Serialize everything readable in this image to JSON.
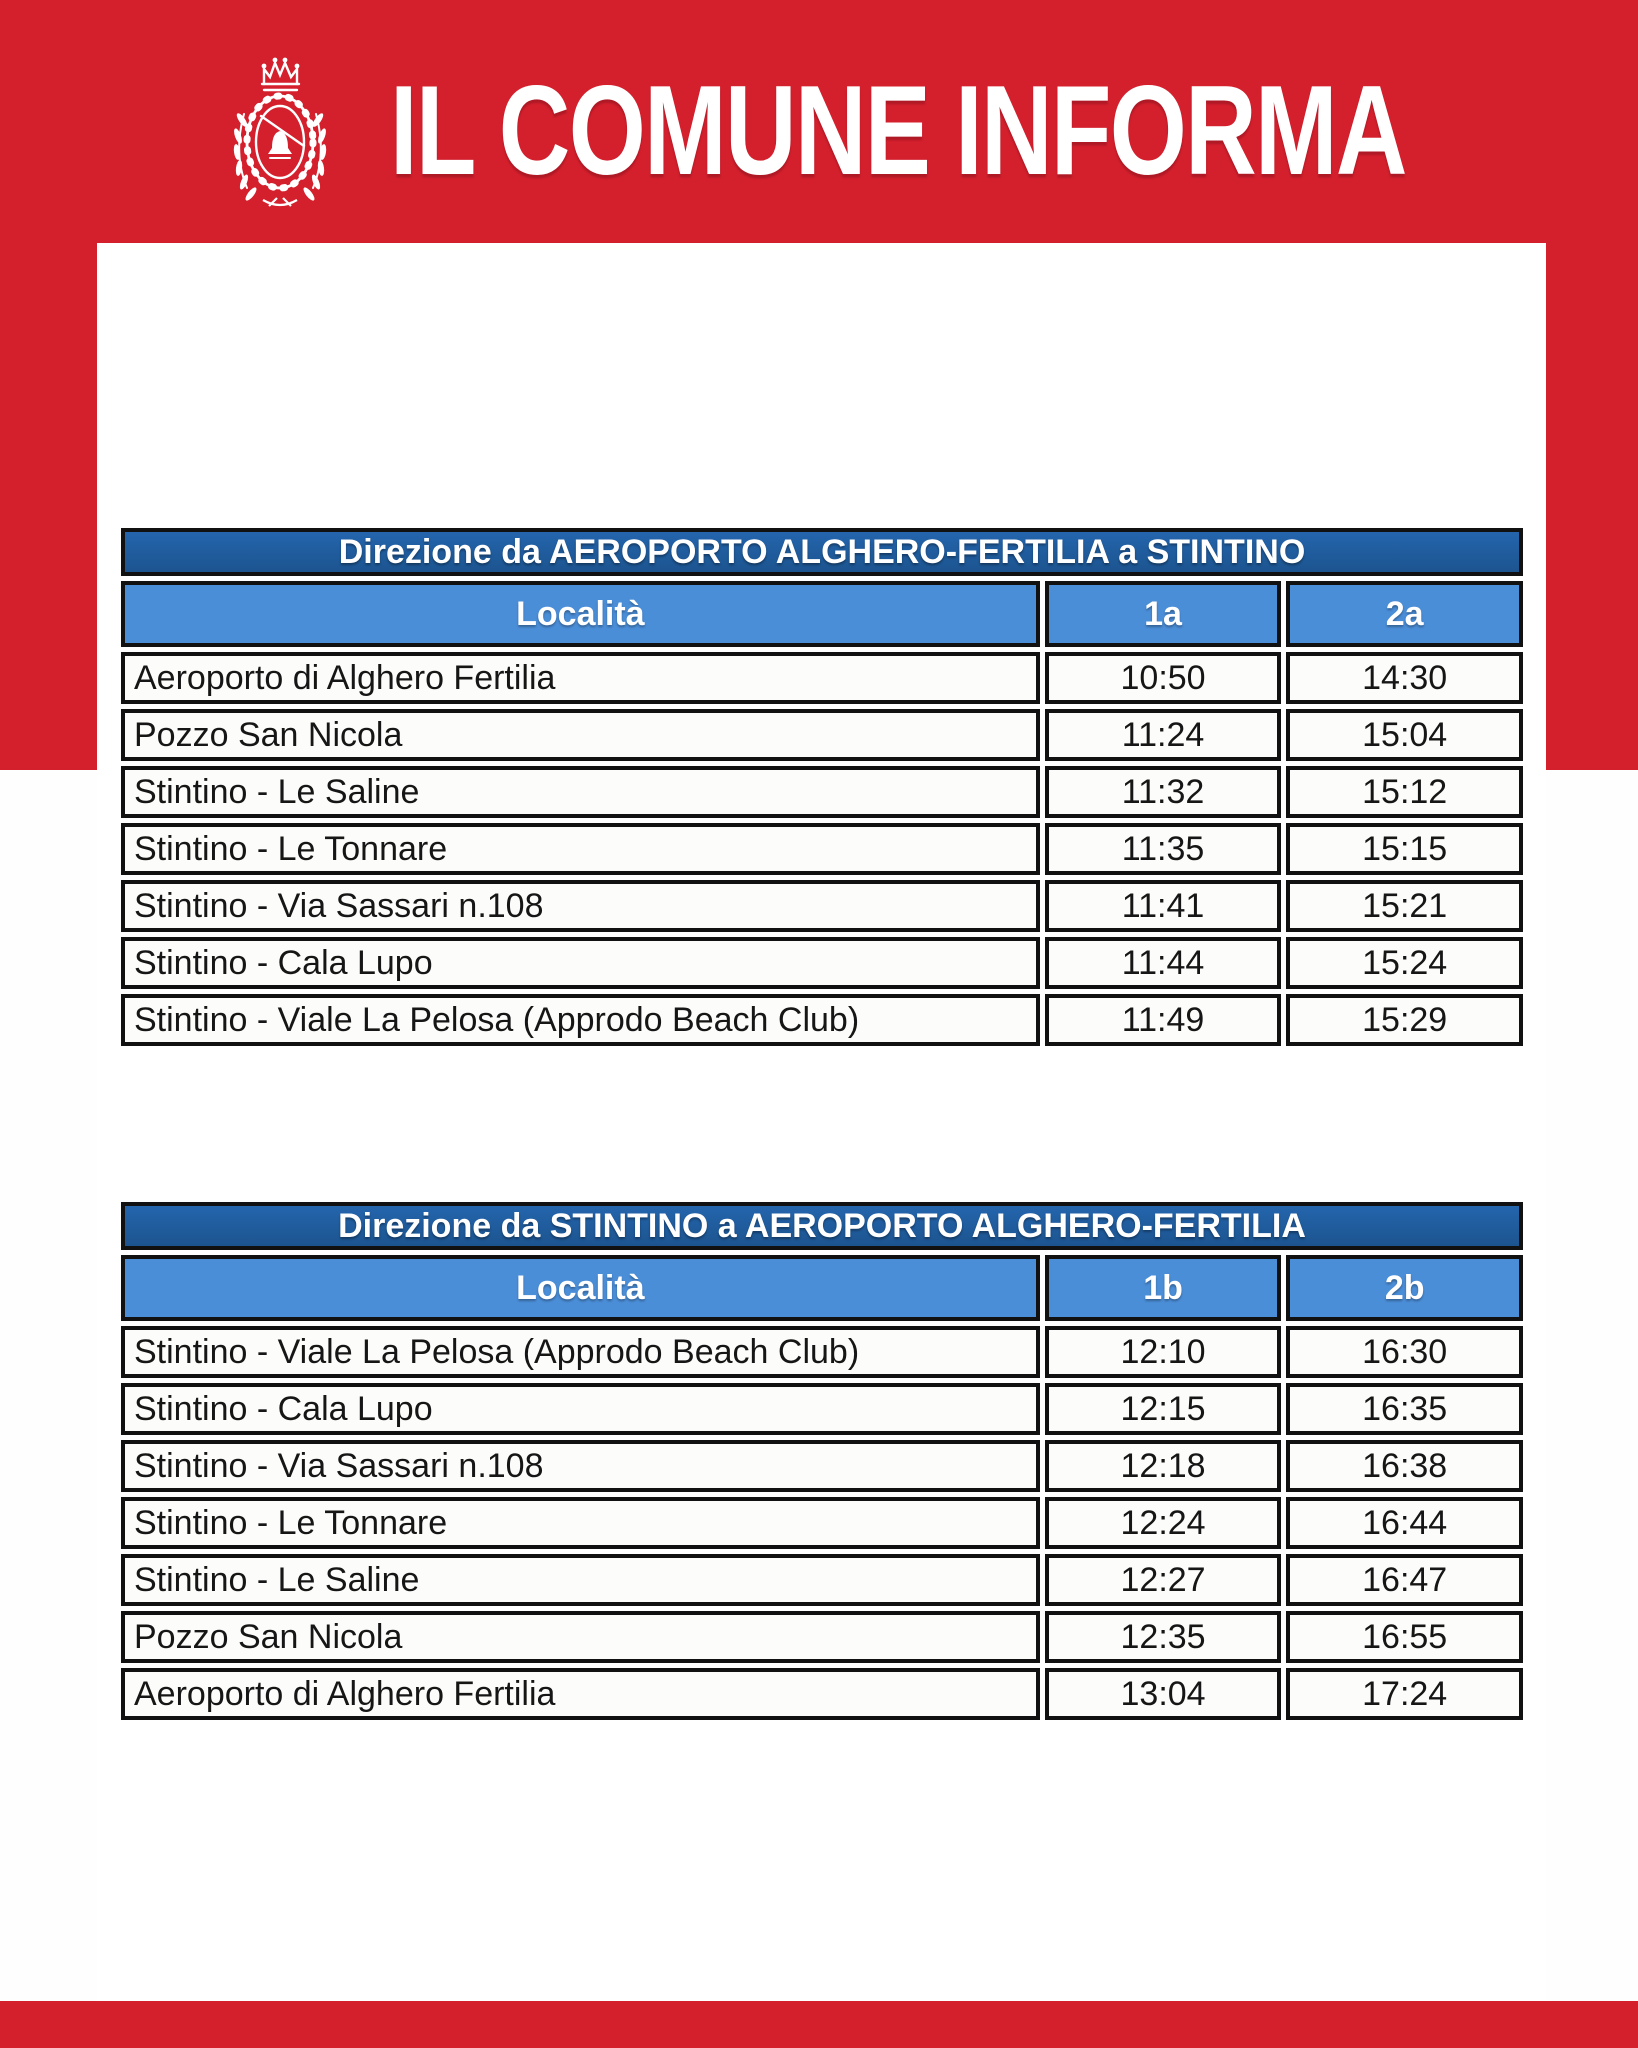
{
  "header": {
    "title": "IL COMUNE INFORMA",
    "logo": "comune-crest-icon"
  },
  "colors": {
    "brand_red": "#d41f2d",
    "table_title_blue": "#1f5da5",
    "table_header_blue": "#4b8ed8",
    "border_black": "#111111",
    "cell_background": "#fcfcfa",
    "text_white": "#ffffff"
  },
  "tables": [
    {
      "title": "Direzione da AEROPORTO ALGHERO-FERTILIA a STINTINO",
      "columns": [
        "Località",
        "1a",
        "2a"
      ],
      "rows": [
        [
          "Aeroporto di Alghero Fertilia",
          "10:50",
          "14:30"
        ],
        [
          "Pozzo San Nicola",
          "11:24",
          "15:04"
        ],
        [
          "Stintino - Le Saline",
          "11:32",
          "15:12"
        ],
        [
          "Stintino - Le Tonnare",
          "11:35",
          "15:15"
        ],
        [
          "Stintino - Via Sassari n.108",
          "11:41",
          "15:21"
        ],
        [
          "Stintino - Cala Lupo",
          "11:44",
          "15:24"
        ],
        [
          "Stintino - Viale La Pelosa (Approdo Beach Club)",
          "11:49",
          "15:29"
        ]
      ]
    },
    {
      "title": "Direzione da STINTINO a AEROPORTO ALGHERO-FERTILIA",
      "columns": [
        "Località",
        "1b",
        "2b"
      ],
      "rows": [
        [
          "Stintino - Viale La Pelosa (Approdo Beach Club)",
          "12:10",
          "16:30"
        ],
        [
          "Stintino - Cala Lupo",
          "12:15",
          "16:35"
        ],
        [
          "Stintino - Via Sassari n.108",
          "12:18",
          "16:38"
        ],
        [
          "Stintino - Le Tonnare",
          "12:24",
          "16:44"
        ],
        [
          "Stintino - Le Saline",
          "12:27",
          "16:47"
        ],
        [
          "Pozzo San Nicola",
          "12:35",
          "16:55"
        ],
        [
          "Aeroporto di Alghero Fertilia",
          "13:04",
          "17:24"
        ]
      ]
    }
  ]
}
